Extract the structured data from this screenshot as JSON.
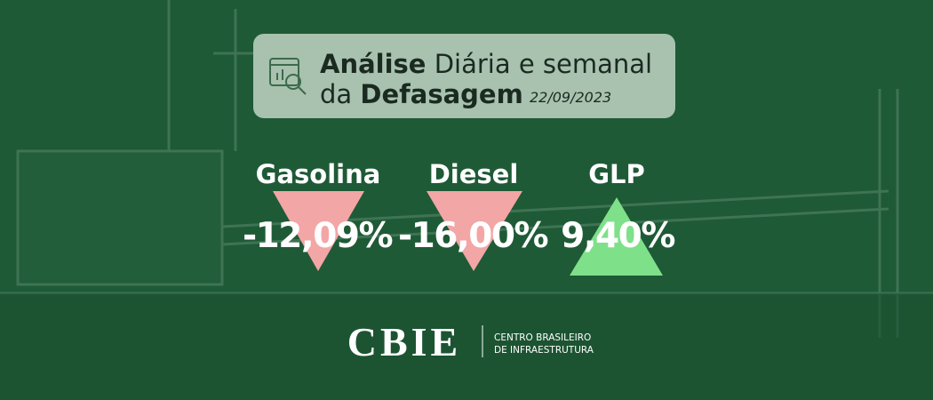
{
  "header": {
    "title_bold": "Análise",
    "title_rest": "Diária e semanal",
    "subtitle_pre": "da",
    "subtitle_bold": "Defasagem",
    "date": "22/09/2023"
  },
  "items": [
    {
      "name": "Gasolina",
      "value": "-12,09%"
    },
    {
      "name": "Diesel",
      "value": "-16,00%"
    },
    {
      "name": "GLP",
      "value": "9,40%"
    }
  ],
  "footer": {
    "logo": "CBIE",
    "line1": "CENTRO BRASILEIRO",
    "line2": "DE INFRAESTRUTURA"
  }
}
